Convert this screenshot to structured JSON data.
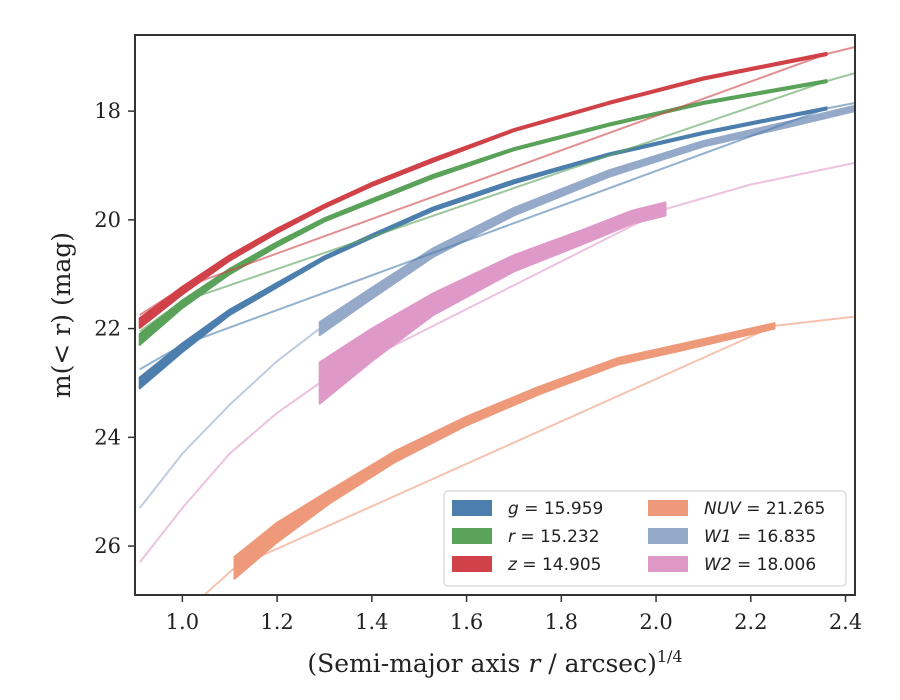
{
  "chart_data": {
    "type": "line",
    "xlabel": "(Semi-major axis r / arcsec)",
    "xlabel_italic": "r",
    "xlabel_exponent": "1/4",
    "ylabel": "m(< r) (mag)",
    "xlim": [
      0.9,
      2.42
    ],
    "ylim": [
      26.9,
      16.6
    ],
    "y_inverted": true,
    "x_ticks": [
      1.0,
      1.2,
      1.4,
      1.6,
      1.8,
      2.0,
      2.2,
      2.4
    ],
    "x_tick_labels": [
      "1.0",
      "1.2",
      "1.4",
      "1.6",
      "1.8",
      "2.0",
      "2.2",
      "2.4"
    ],
    "y_ticks": [
      18,
      20,
      22,
      24,
      26
    ],
    "y_tick_labels": [
      "18",
      "20",
      "22",
      "24",
      "26"
    ],
    "grid": false,
    "legend_position": "bottom-right",
    "series": [
      {
        "key": "g",
        "band": "g",
        "value": "15.959",
        "color": "#4c7fad",
        "points": [
          [
            0.91,
            23.0
          ],
          [
            1.0,
            22.35
          ],
          [
            1.1,
            21.7
          ],
          [
            1.2,
            21.2
          ],
          [
            1.3,
            20.7
          ],
          [
            1.4,
            20.3
          ],
          [
            1.53,
            19.8
          ],
          [
            1.7,
            19.3
          ],
          [
            1.9,
            18.8
          ],
          [
            2.1,
            18.4
          ],
          [
            2.36,
            17.95
          ]
        ],
        "halfwidth": [
          0.1,
          0.08,
          0.05,
          0.04,
          0.03,
          0.03,
          0.03,
          0.03,
          0.02,
          0.02,
          0.02
        ],
        "ext": [
          [
            0.91,
            22.75
          ],
          [
            1.0,
            22.3
          ],
          [
            2.36,
            17.95
          ],
          [
            2.42,
            17.85
          ]
        ]
      },
      {
        "key": "r",
        "band": "r",
        "value": "15.232",
        "color": "#5aa25a",
        "points": [
          [
            0.91,
            22.2
          ],
          [
            1.0,
            21.55
          ],
          [
            1.1,
            20.95
          ],
          [
            1.2,
            20.45
          ],
          [
            1.3,
            20.0
          ],
          [
            1.4,
            19.65
          ],
          [
            1.53,
            19.2
          ],
          [
            1.7,
            18.7
          ],
          [
            1.9,
            18.25
          ],
          [
            2.1,
            17.85
          ],
          [
            2.36,
            17.45
          ]
        ],
        "halfwidth": [
          0.1,
          0.07,
          0.05,
          0.04,
          0.03,
          0.03,
          0.03,
          0.02,
          0.02,
          0.02,
          0.02
        ],
        "ext": [
          [
            0.91,
            22.05
          ],
          [
            1.0,
            21.5
          ],
          [
            2.36,
            17.45
          ],
          [
            2.42,
            17.3
          ]
        ]
      },
      {
        "key": "z",
        "band": "z",
        "value": "14.905",
        "color": "#d04248",
        "points": [
          [
            0.91,
            21.9
          ],
          [
            1.0,
            21.3
          ],
          [
            1.1,
            20.7
          ],
          [
            1.2,
            20.2
          ],
          [
            1.3,
            19.75
          ],
          [
            1.4,
            19.35
          ],
          [
            1.53,
            18.9
          ],
          [
            1.7,
            18.35
          ],
          [
            1.9,
            17.85
          ],
          [
            2.1,
            17.4
          ],
          [
            2.36,
            16.95
          ]
        ],
        "halfwidth": [
          0.09,
          0.07,
          0.05,
          0.04,
          0.03,
          0.03,
          0.03,
          0.02,
          0.02,
          0.02,
          0.02
        ],
        "ext": [
          [
            0.91,
            21.75
          ],
          [
            1.0,
            21.25
          ],
          [
            2.36,
            16.95
          ],
          [
            2.42,
            16.82
          ]
        ]
      },
      {
        "key": "nuv",
        "band": "NUV",
        "value": "21.265",
        "color": "#ee9a7a",
        "points": [
          [
            1.11,
            26.4
          ],
          [
            1.2,
            25.75
          ],
          [
            1.31,
            25.1
          ],
          [
            1.45,
            24.35
          ],
          [
            1.6,
            23.7
          ],
          [
            1.75,
            23.15
          ],
          [
            1.92,
            22.6
          ],
          [
            2.05,
            22.35
          ],
          [
            2.25,
            21.95
          ]
        ],
        "halfwidth": [
          0.2,
          0.18,
          0.12,
          0.1,
          0.08,
          0.07,
          0.06,
          0.06,
          0.05
        ],
        "ext": [
          [
            1.04,
            26.95
          ],
          [
            1.11,
            26.4
          ],
          [
            2.25,
            21.95
          ],
          [
            2.42,
            21.78
          ]
        ]
      },
      {
        "key": "w1",
        "band": "W1",
        "value": "16.835",
        "color": "#95a9c9",
        "points": [
          [
            1.29,
            22.0
          ],
          [
            1.4,
            21.35
          ],
          [
            1.53,
            20.6
          ],
          [
            1.7,
            19.85
          ],
          [
            1.9,
            19.15
          ],
          [
            2.1,
            18.6
          ],
          [
            2.3,
            18.2
          ],
          [
            2.42,
            17.95
          ]
        ],
        "halfwidth": [
          0.12,
          0.1,
          0.08,
          0.07,
          0.06,
          0.05,
          0.05,
          0.05
        ],
        "ext": [
          [
            0.91,
            25.3
          ],
          [
            1.0,
            24.3
          ],
          [
            1.1,
            23.4
          ],
          [
            1.2,
            22.6
          ],
          [
            1.29,
            22.0
          ]
        ]
      },
      {
        "key": "w2",
        "band": "W2",
        "value": "18.006",
        "color": "#df99c8",
        "points": [
          [
            1.29,
            23.0
          ],
          [
            1.4,
            22.3
          ],
          [
            1.53,
            21.55
          ],
          [
            1.7,
            20.8
          ],
          [
            1.85,
            20.3
          ],
          [
            1.95,
            19.95
          ],
          [
            2.02,
            19.8
          ]
        ],
        "halfwidth": [
          0.38,
          0.3,
          0.2,
          0.15,
          0.13,
          0.12,
          0.12
        ],
        "ext": [
          [
            0.91,
            26.3
          ],
          [
            1.0,
            25.3
          ],
          [
            1.1,
            24.3
          ],
          [
            1.2,
            23.55
          ],
          [
            1.29,
            23.0
          ],
          [
            2.02,
            19.8
          ],
          [
            2.2,
            19.35
          ],
          [
            2.42,
            18.95
          ]
        ]
      }
    ]
  }
}
